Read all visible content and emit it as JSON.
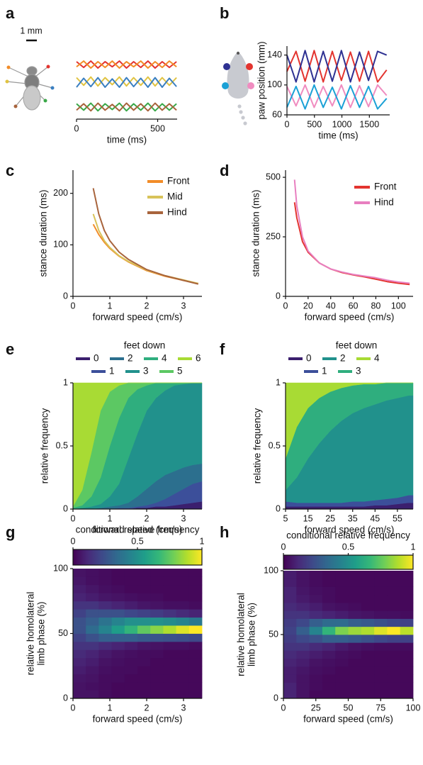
{
  "chart_data": [
    {
      "type": "line",
      "label": "a",
      "scale_bar": "1 mm",
      "x_label": "time (ms)",
      "xlim": [
        0,
        620
      ],
      "xticks": [
        0,
        500
      ],
      "ylim": [
        0,
        10
      ],
      "x": [
        0,
        44,
        88,
        132,
        176,
        220,
        264,
        308,
        352,
        396,
        440,
        484,
        528,
        572,
        616
      ],
      "series": [
        {
          "color": "#e3342f",
          "values": [
            9.0,
            8.1,
            9.1,
            8.0,
            9.0,
            8.2,
            9.1,
            8.0,
            9.0,
            8.1,
            9.1,
            8.0,
            9.0,
            8.1,
            9.0
          ]
        },
        {
          "color": "#f28c28",
          "values": [
            8.2,
            9.1,
            8.0,
            9.0,
            8.1,
            9.1,
            8.0,
            9.0,
            8.2,
            9.1,
            8.0,
            9.0,
            8.1,
            9.1,
            8.2
          ]
        },
        {
          "color": "#e0c341",
          "values": [
            6.5,
            5.3,
            6.6,
            5.2,
            6.5,
            5.4,
            6.6,
            5.2,
            6.5,
            5.3,
            6.6,
            5.2,
            6.5,
            5.3,
            6.5
          ]
        },
        {
          "color": "#3a7fc1",
          "values": [
            5.0,
            6.4,
            5.1,
            6.5,
            5.0,
            6.3,
            5.0,
            6.5,
            5.1,
            6.4,
            5.0,
            6.5,
            5.0,
            6.4,
            5.1
          ]
        },
        {
          "color": "#3aa848",
          "values": [
            2.4,
            1.4,
            2.5,
            1.3,
            2.4,
            1.5,
            2.5,
            1.3,
            2.4,
            1.4,
            2.5,
            1.3,
            2.4,
            1.4,
            2.4
          ]
        },
        {
          "color": "#a8643c",
          "values": [
            1.4,
            2.4,
            1.3,
            2.5,
            1.4,
            2.3,
            1.3,
            2.5,
            1.4,
            2.4,
            1.3,
            2.5,
            1.4,
            2.4,
            1.4
          ]
        }
      ]
    },
    {
      "type": "line",
      "label": "b",
      "x_label": "time (ms)",
      "y_label": "paw position (mm)",
      "xlim": [
        0,
        1870
      ],
      "xticks": [
        0,
        500,
        1000,
        1500
      ],
      "ylim": [
        60,
        152
      ],
      "yticks": [
        60,
        100,
        140
      ],
      "x": [
        0,
        165,
        330,
        495,
        660,
        825,
        990,
        1155,
        1320,
        1485,
        1650,
        1815
      ],
      "series": [
        {
          "color": "#e3342f",
          "values": [
            118,
            145,
            105,
            146,
            104,
            145,
            106,
            144,
            105,
            145,
            104,
            120
          ]
        },
        {
          "color": "#2e3192",
          "values": [
            140,
            104,
            146,
            104,
            145,
            105,
            146,
            104,
            144,
            106,
            145,
            140
          ]
        },
        {
          "color": "#f08cc0",
          "values": [
            98,
            72,
            100,
            70,
            98,
            72,
            100,
            70,
            99,
            71,
            100,
            86
          ]
        },
        {
          "color": "#1ba1d6",
          "values": [
            70,
            98,
            68,
            100,
            70,
            97,
            68,
            99,
            70,
            98,
            68,
            82
          ]
        }
      ]
    },
    {
      "type": "line",
      "label": "c",
      "x_label": "forward speed (cm/s)",
      "y_label": "stance duration (ms)",
      "xlim": [
        0,
        3.5
      ],
      "xticks": [
        0,
        1,
        2,
        3
      ],
      "ylim": [
        0,
        245
      ],
      "yticks": [
        0,
        100,
        200
      ],
      "legend": "upper right",
      "x": [
        0.55,
        0.7,
        0.85,
        1,
        1.25,
        1.5,
        2,
        2.5,
        3,
        3.4
      ],
      "series": [
        {
          "name": "Front",
          "color": "#f28c28",
          "values": [
            140,
            120,
            105,
            93,
            78,
            67,
            50,
            39,
            31,
            25
          ]
        },
        {
          "name": "Mid",
          "color": "#d8c35a",
          "values": [
            160,
            128,
            108,
            95,
            79,
            68,
            51,
            40,
            32,
            25
          ]
        },
        {
          "name": "Hind",
          "color": "#a8643c",
          "values": [
            210,
            160,
            128,
            108,
            86,
            72,
            52,
            40,
            31,
            24
          ]
        }
      ]
    },
    {
      "type": "line",
      "label": "d",
      "x_label": "forward speed (cm/s)",
      "y_label": "stance duration (ms)",
      "xlim": [
        0,
        113
      ],
      "xticks": [
        0,
        20,
        40,
        60,
        80,
        100
      ],
      "ylim": [
        0,
        530
      ],
      "yticks": [
        0,
        250,
        500
      ],
      "legend": "upper right",
      "x": [
        8,
        10,
        15,
        20,
        30,
        40,
        50,
        60,
        70,
        80,
        90,
        100,
        110
      ],
      "series": [
        {
          "name": "Front",
          "color": "#e3342f",
          "values": [
            395,
            330,
            230,
            185,
            140,
            115,
            100,
            90,
            82,
            72,
            62,
            55,
            50
          ]
        },
        {
          "name": "Hind",
          "color": "#e87fc0",
          "values": [
            490,
            380,
            250,
            190,
            140,
            115,
            102,
            92,
            85,
            78,
            68,
            60,
            55
          ]
        }
      ]
    },
    {
      "type": "area",
      "stacked": true,
      "label": "e",
      "legend_title": "feet down",
      "x_label": "forward speed (cm/s)",
      "y_label": "relative frequency",
      "xlim": [
        0,
        3.5
      ],
      "xticks": [
        0,
        1,
        2,
        3
      ],
      "ylim": [
        0,
        1
      ],
      "yticks": [
        0,
        0.5,
        1
      ],
      "x": [
        0,
        0.25,
        0.5,
        0.75,
        1,
        1.25,
        1.5,
        1.75,
        2,
        2.25,
        2.5,
        2.75,
        3,
        3.25,
        3.5
      ],
      "series": [
        {
          "name": "0",
          "color": "#3b1f6e",
          "values": [
            0,
            0,
            0,
            0,
            0,
            0,
            0,
            0.01,
            0.01,
            0.02,
            0.02,
            0.03,
            0.04,
            0.05,
            0.06
          ]
        },
        {
          "name": "1",
          "color": "#3c4f9a",
          "values": [
            0,
            0,
            0,
            0,
            0,
            0.01,
            0.01,
            0.01,
            0.02,
            0.03,
            0.06,
            0.09,
            0.12,
            0.15,
            0.16
          ]
        },
        {
          "name": "2",
          "color": "#2c6f8e",
          "values": [
            0,
            0,
            0,
            0.01,
            0.02,
            0.02,
            0.04,
            0.08,
            0.13,
            0.17,
            0.19,
            0.18,
            0.17,
            0.15,
            0.14
          ]
        },
        {
          "name": "3",
          "color": "#21918c",
          "values": [
            0,
            0.01,
            0.02,
            0.03,
            0.08,
            0.17,
            0.35,
            0.5,
            0.62,
            0.66,
            0.67,
            0.68,
            0.66,
            0.65,
            0.64
          ]
        },
        {
          "name": "4",
          "color": "#2fae7e",
          "values": [
            0.01,
            0.02,
            0.08,
            0.21,
            0.4,
            0.52,
            0.48,
            0.35,
            0.2,
            0.12,
            0.06,
            0.02,
            0.01,
            0,
            0
          ]
        },
        {
          "name": "5",
          "color": "#5cc863",
          "values": [
            0.01,
            0.12,
            0.35,
            0.53,
            0.43,
            0.26,
            0.12,
            0.05,
            0.02,
            0,
            0,
            0,
            0,
            0,
            0
          ]
        },
        {
          "name": "6",
          "color": "#a8db34",
          "values": [
            0.98,
            0.85,
            0.55,
            0.22,
            0.07,
            0.02,
            0,
            0,
            0,
            0,
            0,
            0,
            0,
            0,
            0
          ]
        }
      ]
    },
    {
      "type": "area",
      "stacked": true,
      "label": "f",
      "legend_title": "feet down",
      "x_label": "forward speed (cm/s)",
      "y_label": "relative frequency",
      "xlim": [
        5,
        62
      ],
      "xticks": [
        5,
        15,
        25,
        35,
        45,
        55
      ],
      "ylim": [
        0,
        1
      ],
      "yticks": [
        0,
        0.5,
        1
      ],
      "x": [
        5,
        10,
        15,
        20,
        25,
        30,
        35,
        40,
        45,
        50,
        55,
        60,
        62
      ],
      "series": [
        {
          "name": "0",
          "color": "#3b1f6e",
          "values": [
            0.02,
            0.02,
            0.02,
            0.02,
            0.02,
            0.02,
            0.02,
            0.02,
            0.03,
            0.03,
            0.04,
            0.05,
            0.05
          ]
        },
        {
          "name": "1",
          "color": "#3c4f9a",
          "values": [
            0.04,
            0.03,
            0.03,
            0.03,
            0.03,
            0.03,
            0.04,
            0.04,
            0.04,
            0.05,
            0.05,
            0.06,
            0.06
          ]
        },
        {
          "name": "2",
          "color": "#21918c",
          "values": [
            0.09,
            0.2,
            0.35,
            0.47,
            0.57,
            0.65,
            0.7,
            0.74,
            0.76,
            0.78,
            0.79,
            0.79,
            0.79
          ]
        },
        {
          "name": "3",
          "color": "#2fae7e",
          "values": [
            0.25,
            0.4,
            0.4,
            0.36,
            0.31,
            0.26,
            0.22,
            0.19,
            0.16,
            0.14,
            0.12,
            0.1,
            0.1
          ]
        },
        {
          "name": "4",
          "color": "#a8db34",
          "values": [
            0.6,
            0.35,
            0.2,
            0.12,
            0.07,
            0.04,
            0.02,
            0.01,
            0.01,
            0,
            0,
            0,
            0
          ]
        }
      ]
    },
    {
      "type": "heatmap",
      "label": "g",
      "colorbar_label": "conditional relative frequency",
      "colormap": "viridis",
      "clim": [
        0,
        1
      ],
      "cticks": [
        0,
        0.5,
        1
      ],
      "x_label": "forward speed (cm/s)",
      "y_label": [
        "relative homolateral",
        "limb phase (%)"
      ],
      "xlim": [
        0,
        3.5
      ],
      "xticks": [
        0,
        1,
        2,
        3
      ],
      "ylim": [
        0,
        100
      ],
      "yticks": [
        0,
        50,
        100
      ],
      "values": [
        [
          0.05,
          0.05,
          0.03,
          0.02,
          0.02,
          0.02,
          0.02,
          0.02,
          0.02,
          0.02
        ],
        [
          0.05,
          0.04,
          0.03,
          0.02,
          0.02,
          0.02,
          0.02,
          0.02,
          0.02,
          0.02
        ],
        [
          0.06,
          0.05,
          0.03,
          0.03,
          0.02,
          0.02,
          0.02,
          0.02,
          0.02,
          0.02
        ],
        [
          0.08,
          0.06,
          0.04,
          0.03,
          0.03,
          0.02,
          0.02,
          0.02,
          0.02,
          0.02
        ],
        [
          0.1,
          0.08,
          0.05,
          0.04,
          0.03,
          0.03,
          0.02,
          0.02,
          0.02,
          0.02
        ],
        [
          0.12,
          0.1,
          0.07,
          0.05,
          0.04,
          0.03,
          0.03,
          0.02,
          0.02,
          0.02
        ],
        [
          0.15,
          0.15,
          0.12,
          0.1,
          0.08,
          0.06,
          0.05,
          0.04,
          0.04,
          0.03
        ],
        [
          0.2,
          0.25,
          0.3,
          0.3,
          0.3,
          0.28,
          0.26,
          0.25,
          0.24,
          0.22
        ],
        [
          0.25,
          0.35,
          0.45,
          0.55,
          0.65,
          0.75,
          0.82,
          0.88,
          0.95,
          1
        ],
        [
          0.25,
          0.3,
          0.38,
          0.45,
          0.5,
          0.5,
          0.5,
          0.48,
          0.45,
          0.4
        ],
        [
          0.2,
          0.25,
          0.25,
          0.25,
          0.22,
          0.2,
          0.18,
          0.15,
          0.12,
          0.1
        ],
        [
          0.15,
          0.15,
          0.12,
          0.1,
          0.08,
          0.06,
          0.05,
          0.04,
          0.04,
          0.03
        ],
        [
          0.1,
          0.08,
          0.06,
          0.05,
          0.04,
          0.03,
          0.03,
          0.02,
          0.02,
          0.02
        ],
        [
          0.08,
          0.06,
          0.04,
          0.03,
          0.02,
          0.02,
          0.02,
          0.02,
          0.02,
          0.02
        ],
        [
          0.06,
          0.04,
          0.03,
          0.02,
          0.02,
          0.02,
          0.02,
          0.02,
          0.02,
          0.02
        ],
        [
          0.05,
          0.04,
          0.03,
          0.02,
          0.02,
          0.02,
          0.02,
          0.02,
          0.02,
          0.02
        ]
      ]
    },
    {
      "type": "heatmap",
      "label": "h",
      "colorbar_label": "conditional relative frequency",
      "colormap": "viridis",
      "clim": [
        0,
        1
      ],
      "cticks": [
        0,
        0.5,
        1
      ],
      "x_label": "forward speed (cm/s)",
      "y_label": [
        "relative homolateral",
        "limb phase (%)"
      ],
      "xlim": [
        0,
        100
      ],
      "xticks": [
        0,
        25,
        50,
        75,
        100
      ],
      "ylim": [
        0,
        100
      ],
      "yticks": [
        0,
        50,
        100
      ],
      "values": [
        [
          0.1,
          0.05,
          0.02,
          0.02,
          0.02,
          0.02,
          0.02,
          0.02,
          0.02,
          0.02
        ],
        [
          0.1,
          0.05,
          0.03,
          0.02,
          0.02,
          0.02,
          0.02,
          0.02,
          0.02,
          0.02
        ],
        [
          0.08,
          0.05,
          0.03,
          0.02,
          0.02,
          0.02,
          0.02,
          0.02,
          0.02,
          0.02
        ],
        [
          0.08,
          0.06,
          0.04,
          0.03,
          0.02,
          0.02,
          0.02,
          0.02,
          0.02,
          0.02
        ],
        [
          0.1,
          0.08,
          0.05,
          0.04,
          0.03,
          0.02,
          0.02,
          0.02,
          0.02,
          0.02
        ],
        [
          0.12,
          0.1,
          0.08,
          0.06,
          0.04,
          0.03,
          0.02,
          0.02,
          0.02,
          0.02
        ],
        [
          0.15,
          0.15,
          0.12,
          0.1,
          0.07,
          0.05,
          0.04,
          0.03,
          0.03,
          0.03
        ],
        [
          0.18,
          0.22,
          0.25,
          0.3,
          0.3,
          0.28,
          0.25,
          0.22,
          0.2,
          0.2
        ],
        [
          0.2,
          0.3,
          0.45,
          0.65,
          0.8,
          0.85,
          0.88,
          0.95,
          1,
          0.9
        ],
        [
          0.18,
          0.22,
          0.3,
          0.35,
          0.35,
          0.3,
          0.28,
          0.25,
          0.22,
          0.2
        ],
        [
          0.15,
          0.15,
          0.12,
          0.1,
          0.08,
          0.06,
          0.05,
          0.04,
          0.04,
          0.03
        ],
        [
          0.12,
          0.1,
          0.08,
          0.05,
          0.04,
          0.03,
          0.02,
          0.02,
          0.02,
          0.02
        ],
        [
          0.1,
          0.07,
          0.05,
          0.03,
          0.02,
          0.02,
          0.02,
          0.02,
          0.02,
          0.02
        ],
        [
          0.1,
          0.06,
          0.04,
          0.03,
          0.02,
          0.02,
          0.02,
          0.02,
          0.02,
          0.02
        ],
        [
          0.08,
          0.05,
          0.03,
          0.02,
          0.02,
          0.02,
          0.02,
          0.02,
          0.02,
          0.02
        ],
        [
          0.08,
          0.05,
          0.03,
          0.02,
          0.02,
          0.02,
          0.02,
          0.02,
          0.02,
          0.02
        ]
      ]
    }
  ]
}
